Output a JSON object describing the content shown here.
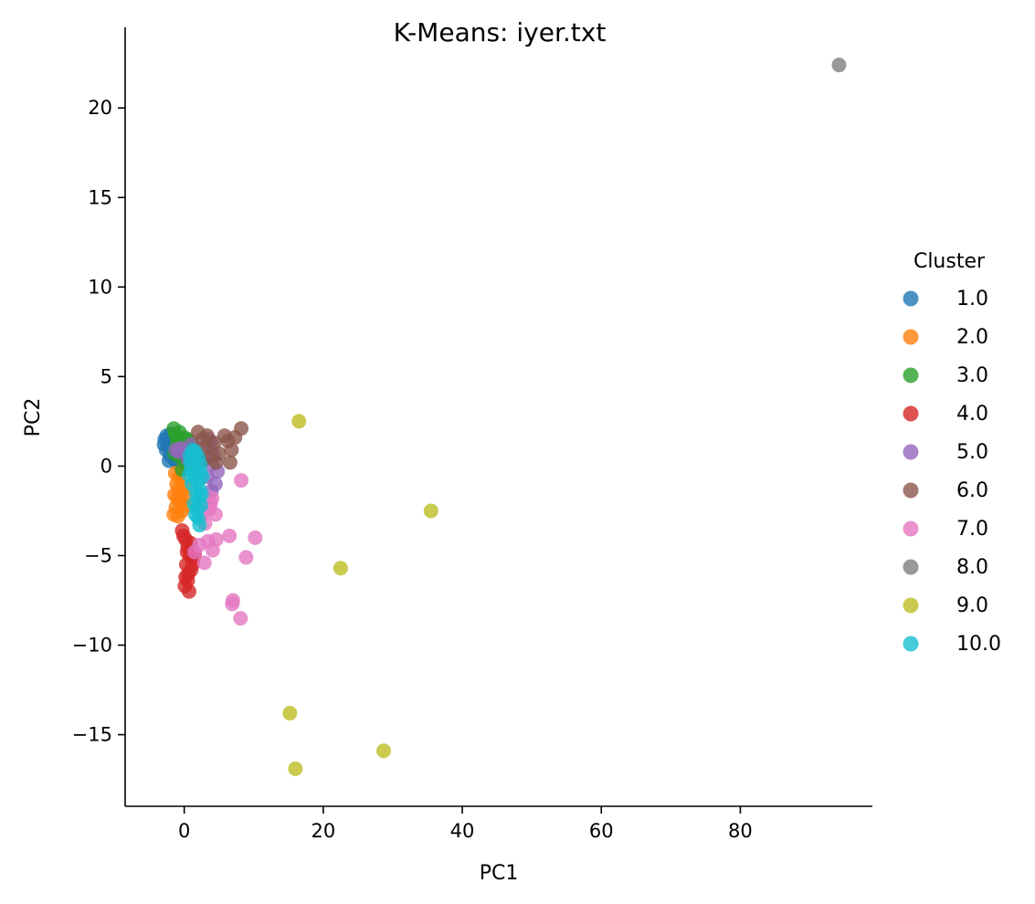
{
  "chart_data": {
    "type": "scatter",
    "title": "K-Means: iyer.txt",
    "xlabel": "PC1",
    "ylabel": "PC2",
    "xlim": [
      -8.5,
      99
    ],
    "ylim": [
      -19,
      24.5
    ],
    "xticks": [
      0,
      20,
      40,
      60,
      80
    ],
    "yticks": [
      -15,
      -10,
      -5,
      0,
      5,
      10,
      15,
      20
    ],
    "xtick_labels": [
      "0",
      "20",
      "40",
      "60",
      "80"
    ],
    "ytick_labels": [
      "−15",
      "−10",
      "−5",
      "0",
      "5",
      "10",
      "15",
      "20"
    ],
    "grid": false,
    "legend": {
      "title": "Cluster",
      "placement": "right"
    },
    "series": [
      {
        "name": "1.0",
        "color": "#1f77b4",
        "points": [
          [
            -2.8,
            1.5
          ],
          [
            -2.5,
            1.7
          ],
          [
            -2.3,
            1.2
          ],
          [
            -2.6,
            0.9
          ],
          [
            -2.0,
            0.6
          ],
          [
            -1.8,
            1.0
          ],
          [
            -1.5,
            0.4
          ],
          [
            -1.2,
            0.7
          ],
          [
            -1.0,
            0.2
          ],
          [
            -0.8,
            0.9
          ],
          [
            -2.2,
            0.3
          ],
          [
            -1.6,
            1.4
          ],
          [
            -0.5,
            0.5
          ],
          [
            -0.3,
            0.1
          ],
          [
            -1.9,
            1.8
          ],
          [
            -2.9,
            1.2
          ],
          [
            -1.3,
            1.1
          ],
          [
            -0.9,
            0.6
          ]
        ]
      },
      {
        "name": "2.0",
        "color": "#ff7f0e",
        "points": [
          [
            -1.5,
            -2.7
          ],
          [
            -1.2,
            -2.3
          ],
          [
            -1.0,
            -1.8
          ],
          [
            -0.8,
            -1.3
          ],
          [
            -0.6,
            -2.0
          ],
          [
            -0.3,
            -2.5
          ],
          [
            -1.1,
            -1.0
          ],
          [
            -0.7,
            -0.6
          ],
          [
            -0.4,
            -1.5
          ],
          [
            0.2,
            -2.2
          ],
          [
            -1.3,
            -0.4
          ],
          [
            -0.9,
            -2.8
          ],
          [
            0.0,
            -1.1
          ],
          [
            -0.5,
            -0.3
          ],
          [
            0.3,
            -1.7
          ],
          [
            -1.4,
            -1.6
          ]
        ]
      },
      {
        "name": "3.0",
        "color": "#2ca02c",
        "points": [
          [
            -1.5,
            2.1
          ],
          [
            -1.3,
            1.8
          ],
          [
            -1.0,
            1.5
          ],
          [
            -0.7,
            1.9
          ],
          [
            -0.4,
            1.3
          ],
          [
            0.0,
            1.6
          ],
          [
            0.3,
            1.2
          ],
          [
            0.5,
            1.5
          ],
          [
            -1.1,
            1.1
          ],
          [
            -0.2,
            0.9
          ],
          [
            0.8,
            0.9
          ],
          [
            1.0,
            1.3
          ],
          [
            -0.6,
            0.5
          ],
          [
            0.2,
            0.3
          ],
          [
            -1.4,
            0.7
          ],
          [
            0.6,
            0.1
          ],
          [
            -0.3,
            -0.2
          ],
          [
            0.9,
            0.4
          ]
        ]
      },
      {
        "name": "4.0",
        "color": "#d62728",
        "points": [
          [
            -0.3,
            -3.6
          ],
          [
            0.2,
            -4.1
          ],
          [
            0.5,
            -4.5
          ],
          [
            0.8,
            -5.0
          ],
          [
            0.3,
            -5.5
          ],
          [
            0.6,
            -6.0
          ],
          [
            0.1,
            -6.7
          ],
          [
            0.7,
            -7.0
          ],
          [
            1.0,
            -5.8
          ],
          [
            1.3,
            -5.2
          ],
          [
            0.4,
            -4.8
          ],
          [
            1.5,
            -4.9
          ],
          [
            0.2,
            -6.2
          ],
          [
            0.9,
            -4.3
          ],
          [
            -0.1,
            -3.9
          ],
          [
            1.2,
            -5.5
          ],
          [
            0.5,
            -6.4
          ]
        ]
      },
      {
        "name": "5.0",
        "color": "#9467bd",
        "points": [
          [
            -1.2,
            0.9
          ],
          [
            -0.5,
            1.0
          ],
          [
            1.0,
            1.2
          ],
          [
            2.5,
            1.0
          ],
          [
            3.8,
            1.3
          ],
          [
            4.2,
            0.6
          ],
          [
            4.8,
            -0.3
          ],
          [
            4.5,
            -1.0
          ],
          [
            3.9,
            -1.4
          ],
          [
            3.3,
            -0.6
          ],
          [
            2.8,
            0.3
          ],
          [
            0.5,
            0.4
          ],
          [
            -0.8,
            0.8
          ],
          [
            4.0,
            0.1
          ],
          [
            3.5,
            1.5
          ]
        ]
      },
      {
        "name": "6.0",
        "color": "#8c564b",
        "points": [
          [
            2.0,
            1.9
          ],
          [
            2.6,
            1.5
          ],
          [
            3.1,
            1.0
          ],
          [
            3.7,
            0.5
          ],
          [
            4.3,
            1.3
          ],
          [
            5.0,
            0.7
          ],
          [
            5.8,
            1.7
          ],
          [
            6.3,
            1.4
          ],
          [
            6.6,
            0.2
          ],
          [
            6.8,
            0.9
          ],
          [
            7.3,
            1.6
          ],
          [
            8.2,
            2.1
          ],
          [
            3.3,
            1.7
          ],
          [
            2.4,
            0.2
          ],
          [
            4.6,
            0.2
          ]
        ]
      },
      {
        "name": "7.0",
        "color": "#e377c2",
        "points": [
          [
            2.5,
            -2.7
          ],
          [
            3.0,
            -3.2
          ],
          [
            3.6,
            -2.4
          ],
          [
            4.0,
            -1.8
          ],
          [
            4.5,
            -2.7
          ],
          [
            3.4,
            -4.2
          ],
          [
            4.1,
            -4.7
          ],
          [
            4.6,
            -4.1
          ],
          [
            2.9,
            -5.4
          ],
          [
            6.5,
            -3.9
          ],
          [
            7.0,
            -7.5
          ],
          [
            6.9,
            -7.7
          ],
          [
            8.1,
            -8.5
          ],
          [
            8.9,
            -5.1
          ],
          [
            10.2,
            -4.0
          ],
          [
            8.2,
            -0.8
          ],
          [
            1.5,
            -4.8
          ],
          [
            3.8,
            -2.1
          ],
          [
            2.2,
            -4.4
          ]
        ]
      },
      {
        "name": "8.0",
        "color": "#7f7f7f",
        "points": [
          [
            94.2,
            22.4
          ]
        ]
      },
      {
        "name": "9.0",
        "color": "#bcbd22",
        "points": [
          [
            16.5,
            2.5
          ],
          [
            35.5,
            -2.5
          ],
          [
            22.5,
            -5.7
          ],
          [
            15.2,
            -13.8
          ],
          [
            16.0,
            -16.9
          ],
          [
            28.7,
            -15.9
          ]
        ]
      },
      {
        "name": "10.0",
        "color": "#17becf",
        "points": [
          [
            0.8,
            0.6
          ],
          [
            1.2,
            0.9
          ],
          [
            1.6,
            0.8
          ],
          [
            2.0,
            0.5
          ],
          [
            2.3,
            0.1
          ],
          [
            1.0,
            -0.2
          ],
          [
            1.5,
            -0.5
          ],
          [
            1.9,
            -0.9
          ],
          [
            2.2,
            -1.3
          ],
          [
            1.1,
            -1.0
          ],
          [
            1.7,
            -1.5
          ],
          [
            2.1,
            -1.8
          ],
          [
            1.4,
            -2.1
          ],
          [
            1.8,
            -2.4
          ],
          [
            2.4,
            -2.2
          ],
          [
            2.0,
            -2.9
          ],
          [
            2.2,
            -3.3
          ],
          [
            0.9,
            0.2
          ],
          [
            2.6,
            -0.6
          ],
          [
            1.3,
            0.4
          ],
          [
            0.7,
            -0.5
          ],
          [
            2.5,
            -1.6
          ],
          [
            1.6,
            -2.7
          ],
          [
            2.3,
            -0.3
          ]
        ]
      }
    ]
  }
}
